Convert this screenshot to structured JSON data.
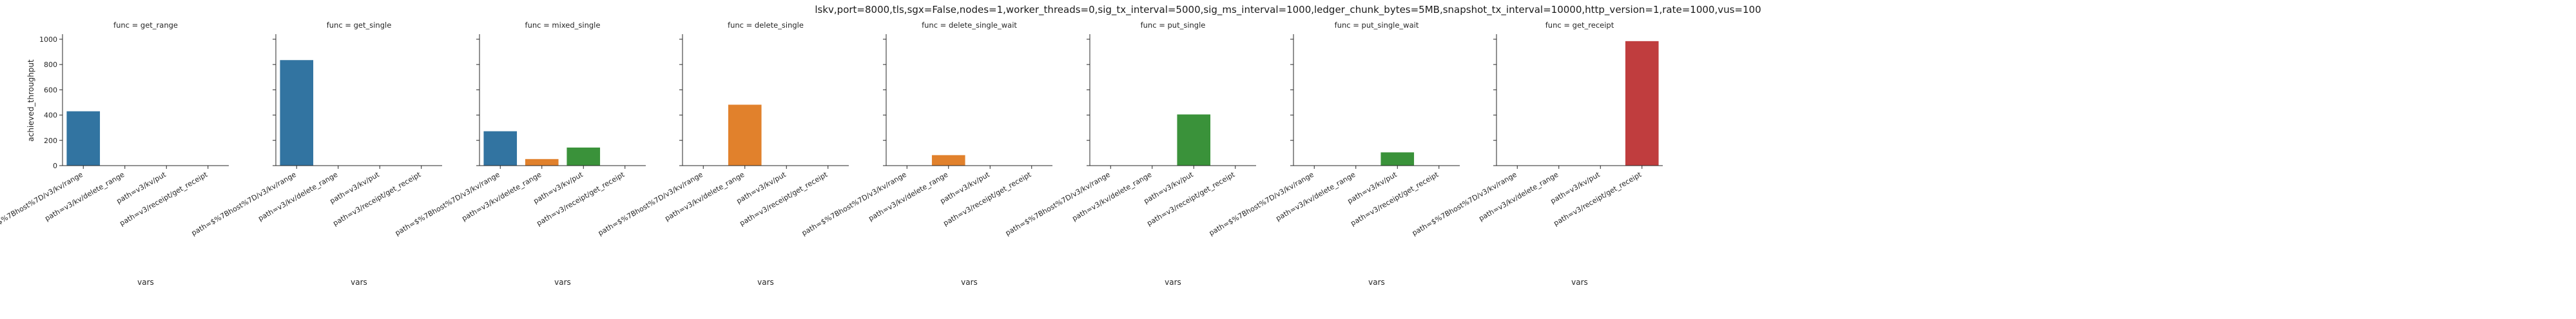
{
  "suptitle": "lskv,port=8000,tls,sgx=False,nodes=1,worker_threads=0,sig_tx_interval=5000,sig_ms_interval=1000,ledger_chunk_bytes=5MB,snapshot_tx_interval=10000,http_version=1,rate=1000,vus=100",
  "colors": {
    "path=$%7Bhost%7D/v3/kv/range": "#3274a1",
    "path=v3/kv/delete_range": "#e1812c",
    "path=v3/kv/put": "#3a923a",
    "path=v3/receipt/get_receipt": "#c03d3e"
  },
  "chart_data": {
    "type": "bar",
    "facet_prefix": "func = ",
    "categories": [
      "path=$%7Bhost%7D/v3/kv/range",
      "path=v3/kv/delete_range",
      "path=v3/kv/put",
      "path=v3/receipt/get_receipt"
    ],
    "xlabel": "vars",
    "ylabel": "achieved_throughput",
    "ylim": [
      0,
      1030
    ],
    "yticks": [
      0,
      200,
      400,
      600,
      800,
      1000
    ],
    "facets": [
      {
        "func": "get_range",
        "values": [
          430,
          null,
          null,
          null
        ]
      },
      {
        "func": "get_single",
        "values": [
          835,
          null,
          null,
          null
        ]
      },
      {
        "func": "mixed_single",
        "values": [
          272,
          52,
          143,
          null
        ]
      },
      {
        "func": "delete_single",
        "values": [
          null,
          482,
          null,
          null
        ]
      },
      {
        "func": "delete_single_wait",
        "values": [
          null,
          83,
          null,
          null
        ]
      },
      {
        "func": "put_single",
        "values": [
          null,
          null,
          405,
          null
        ]
      },
      {
        "func": "put_single_wait",
        "values": [
          null,
          null,
          105,
          null
        ]
      },
      {
        "func": "get_receipt",
        "values": [
          null,
          null,
          null,
          985
        ]
      }
    ]
  }
}
